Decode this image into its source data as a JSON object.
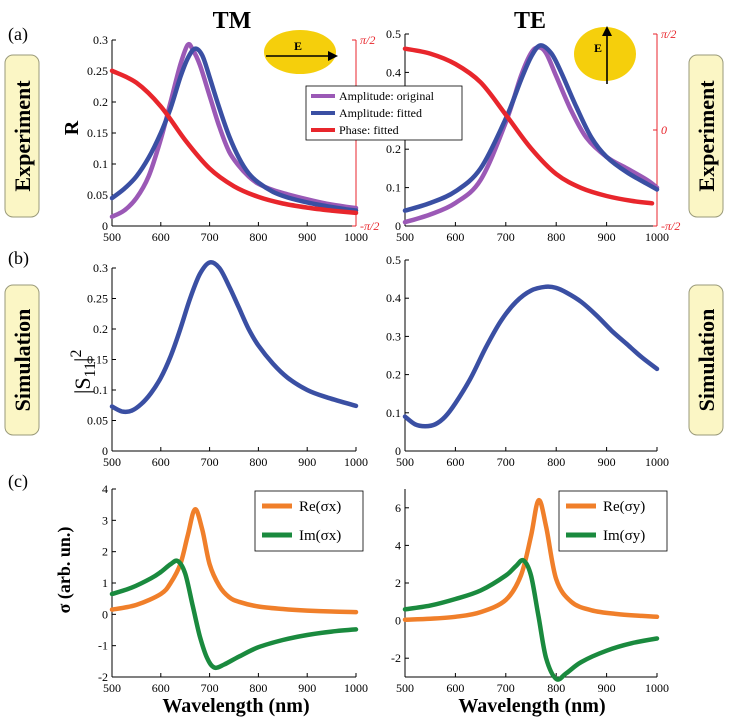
{
  "panel_labels": [
    "(a)",
    "(b)",
    "(c)"
  ],
  "column_titles": [
    "TM",
    "TE"
  ],
  "side_labels": {
    "experiment": "Experiment",
    "simulation": "Simulation"
  },
  "ylabels": {
    "a": "R",
    "b_base": "|S",
    "b_sub": "11",
    "b_bar": "|",
    "b_sup": "2",
    "c": "σ (arb. un.)"
  },
  "xlabel": "Wavelength (nm)",
  "inset_label": "E",
  "colors": {
    "purple": "#9b59b6",
    "blue": "#3a4fa3",
    "red": "#e8262c",
    "orange": "#f07f2a",
    "green": "#1a8a3e",
    "ellipse": "#f5cf0c",
    "label_bg": "#fbf6c5"
  },
  "chart_data": [
    {
      "id": "a-tm",
      "type": "line",
      "title": "TM",
      "xlabel": "",
      "ylabel": "R",
      "xlim": [
        500,
        1000
      ],
      "ylim": [
        0,
        0.3
      ],
      "xticks": [
        "500",
        "600",
        "700",
        "800",
        "900",
        "1000"
      ],
      "yticks": [
        "0",
        "0.05",
        "0.1",
        "0.15",
        "0.2",
        "0.25",
        "0.3"
      ],
      "right_axis": {
        "ticks": [
          "-π/2",
          "π/2"
        ],
        "range": [
          -1.5708,
          1.5708
        ]
      },
      "legend": [
        "Amplitude: original",
        "Amplitude: fitted",
        "Phase: fitted"
      ],
      "series": [
        {
          "name": "Amplitude: original",
          "color": "#9b59b6",
          "x": [
            500,
            525,
            550,
            575,
            600,
            620,
            640,
            655,
            665,
            680,
            700,
            720,
            740,
            760,
            780,
            800,
            830,
            860,
            900,
            940,
            980,
            1000
          ],
          "y": [
            0.015,
            0.025,
            0.045,
            0.08,
            0.14,
            0.2,
            0.26,
            0.292,
            0.285,
            0.26,
            0.21,
            0.16,
            0.12,
            0.097,
            0.08,
            0.068,
            0.058,
            0.051,
            0.043,
            0.036,
            0.031,
            0.029
          ]
        },
        {
          "name": "Amplitude: fitted",
          "color": "#3a4fa3",
          "x": [
            500,
            525,
            550,
            575,
            600,
            620,
            640,
            655,
            670,
            685,
            700,
            720,
            740,
            760,
            780,
            800,
            830,
            860,
            900,
            940,
            980,
            1000
          ],
          "y": [
            0.045,
            0.06,
            0.08,
            0.11,
            0.15,
            0.19,
            0.24,
            0.27,
            0.286,
            0.275,
            0.24,
            0.19,
            0.145,
            0.11,
            0.085,
            0.07,
            0.055,
            0.046,
            0.038,
            0.032,
            0.027,
            0.025
          ]
        },
        {
          "name": "Phase: fitted",
          "color": "#e8262c",
          "axis": "right",
          "x": [
            500,
            550,
            600,
            650,
            700,
            750,
            800,
            850,
            900,
            950,
            1000
          ],
          "y": [
            1.05,
            0.85,
            0.45,
            -0.12,
            -0.6,
            -0.9,
            -1.08,
            -1.19,
            -1.26,
            -1.31,
            -1.35
          ]
        }
      ]
    },
    {
      "id": "a-te",
      "type": "line",
      "title": "TE",
      "xlabel": "",
      "ylabel": "",
      "xlim": [
        500,
        1000
      ],
      "ylim": [
        0,
        0.5
      ],
      "xticks": [
        "500",
        "600",
        "700",
        "800",
        "900",
        "1000"
      ],
      "yticks": [
        "0",
        "0.1",
        "0.2",
        "0.3",
        "0.4",
        "0.5"
      ],
      "right_axis": {
        "ticks": [
          "-π/2",
          "0",
          "π/2"
        ],
        "range": [
          -1.5708,
          1.5708
        ]
      },
      "series": [
        {
          "name": "Amplitude: original",
          "color": "#9b59b6",
          "x": [
            500,
            550,
            600,
            650,
            700,
            730,
            750,
            765,
            780,
            800,
            830,
            860,
            900,
            940,
            980,
            1000
          ],
          "y": [
            0.01,
            0.03,
            0.06,
            0.12,
            0.27,
            0.39,
            0.45,
            0.465,
            0.45,
            0.39,
            0.3,
            0.23,
            0.18,
            0.15,
            0.12,
            0.1
          ]
        },
        {
          "name": "Amplitude: fitted",
          "color": "#3a4fa3",
          "x": [
            500,
            550,
            600,
            650,
            700,
            730,
            750,
            768,
            790,
            810,
            840,
            870,
            900,
            940,
            980,
            1000
          ],
          "y": [
            0.04,
            0.06,
            0.09,
            0.15,
            0.28,
            0.38,
            0.44,
            0.47,
            0.45,
            0.4,
            0.31,
            0.23,
            0.18,
            0.14,
            0.11,
            0.095
          ]
        },
        {
          "name": "Phase: fitted",
          "color": "#e8262c",
          "axis": "right",
          "x": [
            500,
            550,
            600,
            650,
            700,
            750,
            800,
            850,
            900,
            950,
            990
          ],
          "y": [
            1.33,
            1.25,
            1.08,
            0.78,
            0.25,
            -0.3,
            -0.72,
            -0.95,
            -1.08,
            -1.16,
            -1.2
          ]
        }
      ]
    },
    {
      "id": "b-tm",
      "type": "line",
      "xlabel": "",
      "ylabel": "|S11|^2",
      "xlim": [
        500,
        1000
      ],
      "ylim": [
        0,
        0.3
      ],
      "xticks": [
        "500",
        "600",
        "700",
        "800",
        "900",
        "1000"
      ],
      "yticks": [
        "0",
        "0.05",
        "0.1",
        "0.15",
        "0.2",
        "0.25",
        "0.3"
      ],
      "series": [
        {
          "name": "|S11|^2",
          "color": "#3a4fa3",
          "x": [
            500,
            520,
            540,
            560,
            580,
            600,
            620,
            640,
            660,
            680,
            700,
            720,
            740,
            760,
            780,
            800,
            830,
            860,
            900,
            940,
            1000
          ],
          "y": [
            0.073,
            0.065,
            0.066,
            0.077,
            0.095,
            0.12,
            0.155,
            0.2,
            0.25,
            0.29,
            0.309,
            0.3,
            0.27,
            0.235,
            0.2,
            0.173,
            0.143,
            0.12,
            0.1,
            0.088,
            0.074
          ]
        }
      ]
    },
    {
      "id": "b-te",
      "type": "line",
      "xlabel": "",
      "ylabel": "",
      "xlim": [
        500,
        1000
      ],
      "ylim": [
        0,
        0.5
      ],
      "xticks": [
        "500",
        "600",
        "700",
        "800",
        "900",
        "1000"
      ],
      "yticks": [
        "0",
        "0.1",
        "0.2",
        "0.3",
        "0.4",
        "0.5"
      ],
      "series": [
        {
          "name": "|S11|^2",
          "color": "#3a4fa3",
          "x": [
            500,
            520,
            540,
            560,
            580,
            600,
            630,
            660,
            690,
            720,
            750,
            780,
            800,
            820,
            850,
            880,
            910,
            940,
            970,
            1000
          ],
          "y": [
            0.09,
            0.07,
            0.065,
            0.07,
            0.09,
            0.125,
            0.19,
            0.27,
            0.34,
            0.39,
            0.42,
            0.43,
            0.427,
            0.415,
            0.39,
            0.355,
            0.315,
            0.28,
            0.245,
            0.215
          ]
        }
      ]
    },
    {
      "id": "c-tm",
      "type": "line",
      "xlabel": "Wavelength (nm)",
      "ylabel": "σ (arb. un.)",
      "xlim": [
        500,
        1000
      ],
      "ylim": [
        -2,
        4
      ],
      "xticks": [
        "500",
        "600",
        "700",
        "800",
        "900",
        "1000"
      ],
      "yticks": [
        "-2",
        "-1",
        "0",
        "1",
        "2",
        "3",
        "4"
      ],
      "legend": [
        "Re(σx)",
        "Im(σx)"
      ],
      "series": [
        {
          "name": "Re(σx)",
          "color": "#f07f2a",
          "x": [
            500,
            550,
            600,
            620,
            640,
            655,
            670,
            685,
            700,
            720,
            740,
            760,
            800,
            850,
            900,
            950,
            1000
          ],
          "y": [
            0.15,
            0.3,
            0.65,
            1.0,
            1.6,
            2.5,
            3.35,
            2.7,
            1.6,
            0.9,
            0.55,
            0.4,
            0.25,
            0.17,
            0.12,
            0.09,
            0.07
          ]
        },
        {
          "name": "Im(σx)",
          "color": "#1a8a3e",
          "x": [
            500,
            540,
            580,
            600,
            620,
            635,
            650,
            665,
            680,
            695,
            710,
            730,
            760,
            800,
            850,
            900,
            950,
            1000
          ],
          "y": [
            0.65,
            0.85,
            1.15,
            1.35,
            1.6,
            1.7,
            1.3,
            0.3,
            -0.7,
            -1.4,
            -1.7,
            -1.6,
            -1.35,
            -1.05,
            -0.82,
            -0.66,
            -0.55,
            -0.48
          ]
        }
      ]
    },
    {
      "id": "c-te",
      "type": "line",
      "xlabel": "Wavelength (nm)",
      "ylabel": "",
      "xlim": [
        500,
        1000
      ],
      "ylim": [
        -3,
        7
      ],
      "xticks": [
        "500",
        "600",
        "700",
        "800",
        "900",
        "1000"
      ],
      "yticks": [
        "-2",
        "0",
        "2",
        "4",
        "6"
      ],
      "legend": [
        "Re(σy)",
        "Im(σy)"
      ],
      "series": [
        {
          "name": "Re(σy)",
          "color": "#f07f2a",
          "x": [
            500,
            550,
            600,
            650,
            700,
            730,
            750,
            765,
            780,
            800,
            830,
            870,
            920,
            970,
            1000
          ],
          "y": [
            0.05,
            0.1,
            0.2,
            0.45,
            1.1,
            2.4,
            4.5,
            6.4,
            5.0,
            2.2,
            1.0,
            0.55,
            0.35,
            0.25,
            0.2
          ]
        },
        {
          "name": "Im(σy)",
          "color": "#1a8a3e",
          "x": [
            500,
            550,
            600,
            650,
            700,
            720,
            735,
            750,
            765,
            780,
            800,
            820,
            850,
            900,
            950,
            1000
          ],
          "y": [
            0.6,
            0.8,
            1.15,
            1.6,
            2.4,
            2.9,
            3.2,
            2.4,
            0.2,
            -2.0,
            -3.1,
            -2.8,
            -2.2,
            -1.6,
            -1.2,
            -0.95
          ]
        }
      ]
    }
  ]
}
